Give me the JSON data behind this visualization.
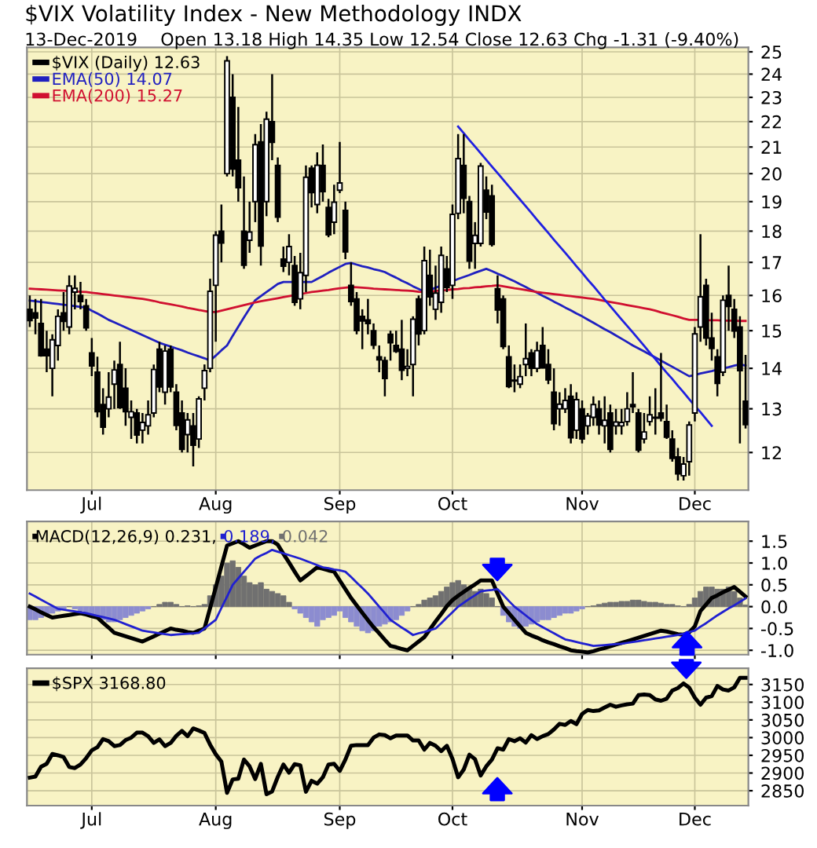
{
  "chart_data": [
    {
      "type": "candlestick",
      "title": "$VIX Volatility Index - New Methodology INDX",
      "subtitle": "13-Dec-2019",
      "annotations": [
        "Open 13.18 High 14.35 Low 12.54 Close 12.63 Chg -1.31 (-9.40%)"
      ],
      "categories": [
        null,
        null,
        null,
        null,
        null,
        null,
        null,
        null,
        null,
        null,
        null,
        "Jul",
        null,
        null,
        null,
        null,
        null,
        null,
        null,
        null,
        null,
        null,
        null,
        null,
        null,
        null,
        null,
        null,
        null,
        null,
        null,
        null,
        null,
        "Aug",
        null,
        null,
        null,
        null,
        null,
        null,
        null,
        null,
        null,
        null,
        null,
        null,
        null,
        null,
        null,
        null,
        null,
        null,
        null,
        null,
        null,
        "Sep",
        null,
        null,
        null,
        null,
        null,
        null,
        null,
        null,
        null,
        null,
        null,
        null,
        null,
        null,
        null,
        null,
        null,
        null,
        null,
        "Oct",
        null,
        null,
        null,
        null,
        null,
        null,
        null,
        null,
        null,
        null,
        null,
        null,
        null,
        null,
        null,
        null,
        null,
        null,
        null,
        null,
        null,
        null,
        "Nov",
        null,
        null,
        null,
        null,
        null,
        null,
        null,
        null,
        null,
        null,
        null,
        null,
        null,
        null,
        null,
        null,
        null,
        null,
        null,
        "Dec",
        null,
        null,
        null,
        null,
        null,
        null,
        null,
        null,
        null
      ],
      "series": [
        {
          "type": "candlestick",
          "name": "$VIX (Daily) 12.63",
          "color": "#000000",
          "ohlc": [
            [
              15.6,
              16.0,
              15.1,
              15.28
            ],
            [
              15.5,
              15.9,
              14.9,
              15.35
            ],
            [
              15.2,
              15.9,
              14.3,
              14.33
            ],
            [
              14.5,
              15.0,
              13.9,
              14.33
            ],
            [
              14.0,
              14.9,
              13.3,
              14.75
            ],
            [
              14.6,
              15.6,
              14.2,
              15.4
            ],
            [
              15.5,
              16.1,
              15.0,
              15.26
            ],
            [
              15.1,
              16.6,
              14.9,
              16.28
            ],
            [
              16.1,
              16.6,
              15.6,
              16.21
            ],
            [
              16.0,
              16.4,
              15.6,
              15.82
            ],
            [
              15.7,
              15.9,
              15.0,
              15.08
            ],
            [
              14.4,
              14.8,
              13.8,
              14.06
            ],
            [
              13.9,
              14.3,
              12.8,
              12.93
            ],
            [
              13.1,
              13.5,
              12.4,
              12.57
            ],
            [
              13.0,
              13.9,
              12.8,
              13.28
            ],
            [
              13.6,
              14.2,
              13.0,
              13.96
            ],
            [
              14.1,
              14.7,
              13.0,
              13.03
            ],
            [
              13.5,
              14.0,
              12.6,
              12.93
            ],
            [
              12.8,
              13.2,
              12.3,
              12.93
            ],
            [
              12.9,
              13.0,
              12.2,
              12.39
            ],
            [
              12.5,
              12.9,
              12.2,
              12.68
            ],
            [
              12.6,
              13.2,
              12.4,
              12.86
            ],
            [
              12.9,
              14.1,
              12.8,
              13.97
            ],
            [
              14.5,
              14.7,
              13.4,
              13.53
            ],
            [
              13.4,
              14.6,
              13.1,
              14.45
            ],
            [
              14.5,
              14.6,
              13.4,
              13.53
            ],
            [
              13.4,
              13.6,
              12.5,
              12.61
            ],
            [
              12.9,
              13.2,
              12.0,
              12.07
            ],
            [
              12.4,
              12.9,
              12.0,
              12.74
            ],
            [
              12.6,
              12.9,
              11.7,
              12.16
            ],
            [
              12.3,
              13.3,
              12.1,
              13.24
            ],
            [
              13.5,
              14.1,
              13.2,
              13.94
            ],
            [
              14.0,
              16.5,
              13.9,
              16.12
            ],
            [
              16.3,
              18.0,
              14.7,
              17.87
            ],
            [
              18.0,
              18.9,
              17.0,
              17.61
            ],
            [
              20.0,
              24.8,
              19.9,
              24.59
            ],
            [
              23.0,
              24.0,
              19.9,
              20.17
            ],
            [
              20.5,
              22.6,
              19.0,
              19.49
            ],
            [
              18.0,
              19.9,
              16.8,
              16.91
            ],
            [
              17.7,
              19.0,
              17.3,
              17.97
            ],
            [
              19.0,
              21.5,
              18.3,
              21.09
            ],
            [
              21.2,
              21.9,
              16.9,
              17.52
            ],
            [
              19.0,
              22.4,
              18.5,
              22.1
            ],
            [
              22.0,
              24.0,
              20.5,
              21.18
            ],
            [
              20.3,
              20.6,
              18.3,
              18.47
            ],
            [
              17.1,
              17.5,
              16.7,
              16.88
            ],
            [
              17.0,
              17.9,
              16.6,
              17.5
            ],
            [
              16.9,
              17.2,
              15.7,
              15.8
            ],
            [
              15.9,
              17.3,
              15.6,
              16.68
            ],
            [
              16.6,
              20.3,
              16.1,
              19.87
            ],
            [
              20.2,
              20.3,
              18.8,
              19.32
            ],
            [
              18.9,
              20.8,
              18.6,
              20.31
            ],
            [
              20.3,
              21.1,
              19.0,
              19.35
            ],
            [
              18.8,
              19.1,
              17.8,
              17.88
            ],
            [
              18.3,
              19.6,
              17.9,
              18.98
            ],
            [
              19.4,
              21.2,
              19.3,
              19.66
            ],
            [
              18.7,
              19.0,
              17.1,
              17.33
            ],
            [
              16.3,
              17.0,
              15.7,
              15.82
            ],
            [
              15.9,
              16.1,
              14.9,
              15.0
            ],
            [
              15.4,
              15.6,
              14.5,
              15.27
            ],
            [
              15.3,
              15.9,
              14.9,
              15.2
            ],
            [
              15.0,
              15.2,
              14.5,
              14.61
            ],
            [
              14.3,
              14.6,
              13.9,
              14.22
            ],
            [
              14.2,
              14.3,
              13.3,
              13.74
            ],
            [
              14.9,
              15.0,
              14.2,
              14.67
            ],
            [
              14.6,
              15.0,
              14.4,
              14.44
            ],
            [
              14.5,
              15.3,
              13.7,
              13.95
            ],
            [
              14.0,
              14.5,
              13.8,
              14.05
            ],
            [
              14.1,
              15.4,
              13.3,
              15.32
            ],
            [
              15.9,
              16.0,
              14.6,
              14.91
            ],
            [
              15.0,
              17.5,
              14.9,
              17.05
            ],
            [
              16.6,
              17.4,
              15.7,
              15.96
            ],
            [
              15.6,
              16.9,
              15.3,
              16.07
            ],
            [
              15.8,
              17.5,
              15.5,
              17.22
            ],
            [
              16.8,
              17.2,
              16.1,
              16.24
            ],
            [
              16.3,
              18.9,
              15.9,
              18.56
            ],
            [
              18.6,
              21.5,
              18.4,
              20.56
            ],
            [
              20.3,
              21.5,
              18.6,
              19.12
            ],
            [
              19.0,
              19.2,
              16.8,
              17.04
            ],
            [
              17.6,
              18.3,
              16.8,
              17.86
            ],
            [
              17.6,
              20.4,
              17.5,
              20.28
            ],
            [
              19.4,
              19.9,
              18.4,
              18.64
            ],
            [
              19.2,
              19.6,
              17.5,
              17.57
            ],
            [
              16.2,
              16.6,
              15.2,
              15.58
            ],
            [
              15.9,
              16.0,
              14.5,
              14.57
            ],
            [
              14.3,
              14.6,
              13.5,
              13.54
            ],
            [
              13.7,
              14.1,
              13.4,
              13.68
            ],
            [
              13.6,
              14.1,
              13.5,
              13.79
            ],
            [
              14.1,
              15.2,
              13.8,
              14.25
            ],
            [
              14.4,
              14.5,
              13.8,
              14.0
            ],
            [
              14.0,
              14.7,
              13.9,
              14.46
            ],
            [
              14.6,
              15.1,
              14.0,
              14.01
            ],
            [
              14.1,
              14.5,
              13.6,
              13.71
            ],
            [
              13.4,
              14.0,
              12.5,
              12.65
            ],
            [
              13.0,
              13.4,
              12.6,
              13.11
            ],
            [
              13.0,
              13.5,
              12.9,
              13.2
            ],
            [
              13.3,
              13.6,
              12.2,
              12.33
            ],
            [
              12.5,
              13.4,
              12.3,
              13.22
            ],
            [
              13.0,
              13.2,
              12.2,
              12.3
            ],
            [
              12.6,
              12.9,
              12.4,
              12.83
            ],
            [
              12.8,
              13.3,
              12.6,
              13.1
            ],
            [
              13.0,
              13.2,
              12.4,
              12.62
            ],
            [
              12.6,
              13.3,
              12.2,
              12.73
            ],
            [
              12.9,
              13.1,
              12.0,
              12.07
            ],
            [
              12.6,
              13.0,
              12.4,
              12.69
            ],
            [
              12.6,
              13.0,
              12.4,
              12.68
            ],
            [
              12.7,
              13.4,
              12.6,
              13.0
            ],
            [
              13.1,
              13.9,
              12.9,
              13.05
            ],
            [
              12.9,
              13.0,
              12.0,
              12.05
            ],
            [
              12.3,
              12.9,
              12.2,
              12.46
            ],
            [
              12.7,
              13.3,
              12.6,
              12.86
            ],
            [
              12.8,
              13.5,
              12.4,
              12.78
            ],
            [
              12.9,
              14.4,
              12.7,
              12.78
            ],
            [
              12.7,
              13.1,
              12.3,
              12.34
            ],
            [
              12.3,
              12.5,
              11.8,
              11.87
            ],
            [
              11.9,
              12.1,
              11.4,
              11.54
            ],
            [
              11.5,
              11.9,
              11.4,
              11.75
            ],
            [
              11.8,
              12.7,
              11.5,
              12.62
            ],
            [
              12.9,
              15.1,
              12.7,
              14.91
            ],
            [
              15.1,
              17.9,
              14.7,
              15.96
            ],
            [
              16.3,
              16.5,
              14.6,
              14.8
            ],
            [
              14.8,
              15.5,
              14.2,
              14.52
            ],
            [
              14.3,
              14.5,
              13.3,
              13.62
            ],
            [
              13.9,
              16.0,
              13.8,
              15.86
            ],
            [
              16.0,
              16.9,
              15.0,
              15.68
            ],
            [
              15.6,
              15.9,
              14.8,
              14.99
            ],
            [
              15.1,
              15.4,
              12.2,
              13.94
            ],
            [
              13.18,
              14.35,
              12.54,
              12.63
            ]
          ]
        },
        {
          "type": "line",
          "name": "EMA(50) 14.07",
          "color": "#2020c0",
          "values": [
            15.85,
            15.83,
            15.81,
            15.79,
            15.77,
            15.75,
            15.73,
            15.71,
            15.69,
            15.67,
            15.65,
            15.56,
            15.48,
            15.39,
            15.3,
            15.23,
            15.16,
            15.09,
            15.02,
            14.95,
            14.88,
            14.81,
            14.74,
            14.67,
            14.62,
            14.57,
            14.52,
            14.47,
            14.41,
            14.36,
            14.31,
            14.26,
            14.2,
            14.33,
            14.47,
            14.6,
            14.86,
            15.11,
            15.37,
            15.62,
            15.86,
            15.98,
            16.1,
            16.22,
            16.34,
            16.4,
            16.4,
            16.4,
            16.4,
            16.4,
            16.4,
            16.49,
            16.58,
            16.68,
            16.77,
            16.86,
            16.95,
            16.98,
            16.93,
            16.88,
            16.84,
            16.79,
            16.75,
            16.7,
            16.61,
            16.53,
            16.44,
            16.36,
            16.27,
            16.19,
            16.1,
            16.16,
            16.23,
            16.29,
            16.36,
            16.42,
            16.49,
            16.55,
            16.61,
            16.68,
            16.74,
            16.8,
            16.73,
            16.65,
            16.58,
            16.5,
            16.42,
            16.33,
            16.25,
            16.16,
            16.08,
            15.99,
            15.91,
            15.82,
            15.74,
            15.65,
            15.57,
            15.48,
            15.4,
            15.31,
            15.22,
            15.13,
            15.04,
            14.96,
            14.87,
            14.78,
            14.69,
            14.6,
            14.52,
            14.44,
            14.36,
            14.28,
            14.2,
            14.12,
            14.04,
            13.96,
            13.88,
            13.8,
            13.83,
            13.87,
            13.9,
            13.93,
            13.97,
            14.0,
            14.03,
            14.07,
            14.1,
            14.07
          ]
        },
        {
          "type": "line",
          "name": "EMA(200) 15.27",
          "color": "#d01030",
          "values": [
            16.2,
            16.19,
            16.18,
            16.17,
            16.16,
            16.15,
            16.14,
            16.13,
            16.12,
            16.11,
            16.1,
            16.08,
            16.06,
            16.04,
            16.02,
            16.0,
            15.98,
            15.96,
            15.94,
            15.92,
            15.9,
            15.87,
            15.84,
            15.8,
            15.77,
            15.74,
            15.71,
            15.68,
            15.64,
            15.61,
            15.58,
            15.55,
            15.52,
            15.52,
            15.56,
            15.6,
            15.64,
            15.68,
            15.72,
            15.76,
            15.8,
            15.83,
            15.86,
            15.89,
            15.92,
            15.95,
            15.98,
            16.01,
            16.04,
            16.07,
            16.1,
            16.12,
            16.14,
            16.16,
            16.19,
            16.21,
            16.23,
            16.25,
            16.24,
            16.23,
            16.22,
            16.2,
            16.19,
            16.18,
            16.17,
            16.16,
            16.15,
            16.14,
            16.13,
            16.11,
            16.1,
            16.12,
            16.13,
            16.15,
            16.16,
            16.18,
            16.19,
            16.21,
            16.22,
            16.24,
            16.25,
            16.27,
            16.28,
            16.3,
            16.27,
            16.24,
            16.21,
            16.19,
            16.16,
            16.13,
            16.1,
            16.08,
            16.06,
            16.04,
            16.02,
            16.0,
            15.98,
            15.96,
            15.94,
            15.92,
            15.9,
            15.87,
            15.84,
            15.81,
            15.78,
            15.75,
            15.72,
            15.69,
            15.66,
            15.63,
            15.6,
            15.56,
            15.51,
            15.47,
            15.43,
            15.39,
            15.34,
            15.3,
            15.3,
            15.3,
            15.29,
            15.29,
            15.29,
            15.28,
            15.28,
            15.28,
            15.27,
            15.27
          ]
        },
        {
          "type": "line",
          "color": "#2020e0",
          "values": [
            null,
            null,
            null,
            null,
            null,
            null,
            null,
            null,
            null,
            null,
            null,
            null,
            null,
            null,
            null,
            null,
            null,
            null,
            null,
            null,
            null,
            null,
            null,
            null,
            null,
            null,
            null,
            null,
            null,
            null,
            null,
            null,
            null,
            null,
            null,
            null,
            null,
            null,
            null,
            null,
            null,
            null,
            null,
            null,
            null,
            null,
            null,
            null,
            null,
            null,
            null,
            null,
            null,
            null,
            null,
            null,
            null,
            null,
            null,
            null,
            null,
            null,
            null,
            null,
            null,
            null,
            null,
            null,
            null,
            null,
            null,
            null,
            null,
            null,
            null,
            null,
            21.8,
            21.54,
            21.27,
            21.02,
            20.76,
            20.51,
            20.26,
            20.02,
            19.78,
            19.54,
            19.3,
            19.07,
            18.84,
            18.61,
            18.38,
            18.16,
            17.94,
            17.72,
            17.51,
            17.3,
            17.09,
            16.88,
            16.68,
            16.47,
            16.28,
            16.08,
            15.88,
            15.69,
            15.5,
            15.31,
            15.13,
            14.95,
            14.77,
            14.59,
            14.41,
            14.24,
            14.06,
            13.89,
            13.73,
            13.56,
            13.4,
            13.23,
            13.07,
            12.92,
            12.76,
            12.6,
            null,
            null,
            null,
            null,
            null,
            null
          ]
        }
      ],
      "log": "y",
      "ylim": [
        11.2,
        25.2
      ],
      "yticks": [
        12,
        13,
        14,
        15,
        16,
        17,
        18,
        19,
        20,
        21,
        22,
        23,
        24,
        25
      ],
      "grid": true,
      "legend": "top left"
    },
    {
      "type": "line",
      "series": [
        {
          "type": "line",
          "name": "MACD(12,26,9) 0.231,",
          "color": "#000000",
          "values": [
            0.0,
            -0.06,
            -0.13,
            -0.19,
            -0.25,
            -0.23,
            -0.21,
            -0.19,
            -0.17,
            -0.15,
            -0.18,
            -0.22,
            -0.25,
            -0.37,
            -0.48,
            -0.6,
            -0.64,
            -0.68,
            -0.72,
            -0.76,
            -0.8,
            -0.74,
            -0.68,
            -0.62,
            -0.56,
            -0.5,
            -0.53,
            -0.55,
            -0.58,
            -0.6,
            -0.55,
            -0.5,
            -0.03,
            0.44,
            0.92,
            1.4,
            1.45,
            1.5,
            1.43,
            1.35,
            1.4,
            1.45,
            1.5,
            1.5,
            1.42,
            1.21,
            1.01,
            0.8,
            0.6,
            0.7,
            0.8,
            0.9,
            0.87,
            0.83,
            0.8,
            0.6,
            0.4,
            0.2,
            0.03,
            -0.14,
            -0.31,
            -0.47,
            -0.61,
            -0.76,
            -0.9,
            -0.93,
            -0.97,
            -1.0,
            -0.9,
            -0.8,
            -0.7,
            -0.52,
            -0.34,
            -0.17,
            0.01,
            0.15,
            0.25,
            0.34,
            0.43,
            0.51,
            0.6,
            0.6,
            0.6,
            0.3,
            0.0,
            -0.15,
            -0.3,
            -0.45,
            -0.6,
            -0.66,
            -0.71,
            -0.77,
            -0.82,
            -0.86,
            -0.91,
            -0.95,
            -1.0,
            -1.02,
            -1.03,
            -1.05,
            -1.02,
            -0.98,
            -0.95,
            -0.91,
            -0.87,
            -0.83,
            -0.79,
            -0.75,
            -0.71,
            -0.67,
            -0.63,
            -0.59,
            -0.55,
            -0.57,
            -0.6,
            -0.63,
            -0.64,
            -0.59,
            -0.45,
            -0.1,
            0.05,
            0.2,
            0.26,
            0.33,
            0.39,
            0.45,
            0.34,
            0.23
          ]
        },
        {
          "type": "line",
          "name": "0.189,",
          "color": "#2020d0",
          "values": [
            0.3,
            0.23,
            0.16,
            0.09,
            0.02,
            -0.05,
            -0.07,
            -0.09,
            -0.11,
            -0.13,
            -0.15,
            -0.18,
            -0.21,
            -0.24,
            -0.27,
            -0.3,
            -0.35,
            -0.4,
            -0.45,
            -0.5,
            -0.55,
            -0.57,
            -0.59,
            -0.61,
            -0.63,
            -0.65,
            -0.64,
            -0.63,
            -0.62,
            -0.61,
            -0.6,
            -0.5,
            -0.4,
            -0.3,
            -0.03,
            0.23,
            0.5,
            0.65,
            0.8,
            0.95,
            1.1,
            1.17,
            1.23,
            1.3,
            1.26,
            1.22,
            1.18,
            1.14,
            1.1,
            1.05,
            1.0,
            0.95,
            0.9,
            0.88,
            0.85,
            0.83,
            0.8,
            0.68,
            0.55,
            0.43,
            0.3,
            0.15,
            0.0,
            -0.15,
            -0.3,
            -0.39,
            -0.48,
            -0.56,
            -0.65,
            -0.61,
            -0.58,
            -0.54,
            -0.5,
            -0.38,
            -0.25,
            -0.13,
            0.0,
            0.09,
            0.18,
            0.26,
            0.35,
            0.37,
            0.38,
            0.4,
            0.27,
            0.13,
            0.0,
            -0.1,
            -0.2,
            -0.3,
            -0.4,
            -0.47,
            -0.54,
            -0.61,
            -0.68,
            -0.75,
            -0.78,
            -0.81,
            -0.84,
            -0.87,
            -0.9,
            -0.89,
            -0.88,
            -0.87,
            -0.86,
            -0.85,
            -0.83,
            -0.81,
            -0.79,
            -0.77,
            -0.75,
            -0.73,
            -0.71,
            -0.69,
            -0.67,
            -0.65,
            -0.62,
            -0.58,
            -0.55,
            -0.46,
            -0.38,
            -0.29,
            -0.2,
            -0.12,
            -0.04,
            0.03,
            0.11,
            0.19
          ]
        },
        {
          "type": "bar",
          "name": "0.042",
          "color": "#707070",
          "values": [
            -0.3,
            -0.3,
            -0.25,
            -0.2,
            -0.15,
            -0.1,
            -0.05,
            0.0,
            -0.05,
            -0.1,
            -0.15,
            -0.2,
            -0.25,
            -0.3,
            -0.35,
            -0.35,
            -0.3,
            -0.25,
            -0.2,
            -0.15,
            -0.1,
            -0.05,
            0.0,
            0.05,
            0.1,
            0.1,
            0.05,
            0.0,
            0.02,
            0.0,
            0.02,
            0.05,
            0.25,
            0.5,
            0.7,
            1.0,
            1.05,
            0.9,
            0.7,
            0.55,
            0.5,
            0.55,
            0.4,
            0.35,
            0.3,
            0.25,
            0.1,
            -0.05,
            -0.15,
            -0.25,
            -0.35,
            -0.45,
            -0.3,
            -0.25,
            -0.2,
            -0.1,
            -0.25,
            -0.35,
            -0.45,
            -0.55,
            -0.6,
            -0.55,
            -0.45,
            -0.4,
            -0.35,
            -0.3,
            -0.2,
            -0.1,
            0.0,
            0.05,
            0.15,
            0.2,
            0.25,
            0.35,
            0.45,
            0.55,
            0.6,
            0.5,
            0.45,
            0.35,
            0.4,
            0.3,
            0.2,
            0.0,
            -0.2,
            -0.35,
            -0.45,
            -0.5,
            -0.45,
            -0.4,
            -0.35,
            -0.3,
            -0.3,
            -0.25,
            -0.2,
            -0.15,
            -0.15,
            -0.1,
            -0.05,
            0.0,
            0.02,
            0.05,
            0.08,
            0.1,
            0.1,
            0.12,
            0.12,
            0.15,
            0.15,
            0.12,
            0.1,
            0.1,
            0.08,
            0.05,
            0.05,
            0.02,
            0.0,
            0.05,
            0.2,
            0.35,
            0.45,
            0.45,
            0.4,
            0.4,
            0.45,
            0.35,
            0.2,
            0.04
          ],
          "colors": [
            "#8c8cd0",
            "#8c8cd0",
            "#8c8cd0",
            "#8c8cd0",
            "#8c8cd0",
            "#8c8cd0",
            "#8c8cd0",
            "#707070",
            "#8c8cd0",
            "#8c8cd0",
            "#8c8cd0",
            "#8c8cd0",
            "#8c8cd0",
            "#8c8cd0",
            "#8c8cd0",
            "#8c8cd0",
            "#8c8cd0",
            "#8c8cd0",
            "#8c8cd0",
            "#8c8cd0",
            "#8c8cd0",
            "#8c8cd0",
            "#707070",
            "#707070",
            "#707070",
            "#707070",
            "#707070",
            "#707070",
            "#707070",
            "#707070",
            "#707070",
            "#707070",
            "#707070",
            "#707070",
            "#707070",
            "#707070",
            "#707070",
            "#707070",
            "#707070",
            "#707070",
            "#707070",
            "#707070",
            "#707070",
            "#707070",
            "#707070",
            "#707070",
            "#707070",
            "#8c8cd0",
            "#8c8cd0",
            "#8c8cd0",
            "#8c8cd0",
            "#8c8cd0",
            "#8c8cd0",
            "#8c8cd0",
            "#8c8cd0",
            "#8c8cd0",
            "#8c8cd0",
            "#8c8cd0",
            "#8c8cd0",
            "#8c8cd0",
            "#8c8cd0",
            "#8c8cd0",
            "#8c8cd0",
            "#8c8cd0",
            "#8c8cd0",
            "#8c8cd0",
            "#8c8cd0",
            "#8c8cd0",
            "#707070",
            "#707070",
            "#707070",
            "#707070",
            "#707070",
            "#707070",
            "#707070",
            "#707070",
            "#707070",
            "#707070",
            "#707070",
            "#707070",
            "#707070",
            "#707070",
            "#707070",
            "#707070",
            "#8c8cd0",
            "#8c8cd0",
            "#8c8cd0",
            "#8c8cd0",
            "#8c8cd0",
            "#8c8cd0",
            "#8c8cd0",
            "#8c8cd0",
            "#8c8cd0",
            "#8c8cd0",
            "#8c8cd0",
            "#8c8cd0",
            "#8c8cd0",
            "#8c8cd0",
            "#8c8cd0",
            "#707070",
            "#707070",
            "#707070",
            "#707070",
            "#707070",
            "#707070",
            "#707070",
            "#707070",
            "#707070",
            "#707070",
            "#707070",
            "#707070",
            "#707070",
            "#707070",
            "#707070",
            "#707070",
            "#707070",
            "#707070",
            "#707070",
            "#707070",
            "#707070",
            "#707070",
            "#707070",
            "#707070",
            "#707070",
            "#707070",
            "#707070",
            "#707070",
            "#707070"
          ]
        }
      ],
      "ylim": [
        -1.1,
        1.95
      ],
      "yticks": [
        {
          "value": 1.5,
          "label": "1.5"
        },
        {
          "value": 1,
          "label": "1.0"
        },
        {
          "value": 0.5,
          "label": "0.5"
        },
        {
          "value": 0,
          "label": "0.0"
        },
        {
          "value": -0.5,
          "label": "-0.5"
        },
        {
          "value": -1,
          "label": "-1.0"
        }
      ],
      "tick_labels": "y",
      "grid": true,
      "legend": "top left"
    },
    {
      "type": "line",
      "categories": [
        null,
        null,
        null,
        null,
        null,
        null,
        null,
        null,
        null,
        null,
        null,
        "Jul",
        null,
        null,
        null,
        null,
        null,
        null,
        null,
        null,
        null,
        null,
        null,
        null,
        null,
        null,
        null,
        null,
        null,
        null,
        null,
        null,
        null,
        "Aug",
        null,
        null,
        null,
        null,
        null,
        null,
        null,
        null,
        null,
        null,
        null,
        null,
        null,
        null,
        null,
        null,
        null,
        null,
        null,
        null,
        null,
        "Sep",
        null,
        null,
        null,
        null,
        null,
        null,
        null,
        null,
        null,
        null,
        null,
        null,
        null,
        null,
        null,
        null,
        null,
        null,
        null,
        "Oct",
        null,
        null,
        null,
        null,
        null,
        null,
        null,
        null,
        null,
        null,
        null,
        null,
        null,
        null,
        null,
        null,
        null,
        null,
        null,
        null,
        null,
        null,
        "Nov",
        null,
        null,
        null,
        null,
        null,
        null,
        null,
        null,
        null,
        null,
        null,
        null,
        null,
        null,
        null,
        null,
        null,
        null,
        null,
        "Dec",
        null,
        null,
        null,
        null,
        null,
        null,
        null,
        null,
        null
      ],
      "series": [
        {
          "name": "$SPX 3168.80",
          "color": "#000000",
          "values": [
            2887,
            2890,
            2918,
            2926,
            2954,
            2950,
            2945,
            2917,
            2914,
            2924,
            2942,
            2964,
            2973,
            2996,
            2990,
            2976,
            2979,
            2993,
            3000,
            3014,
            3014,
            3004,
            2985,
            2995,
            2976,
            2985,
            3005,
            3019,
            3004,
            3026,
            3020,
            3013,
            2980,
            2953,
            2932,
            2844,
            2882,
            2884,
            2938,
            2919,
            2883,
            2926,
            2840,
            2848,
            2889,
            2924,
            2901,
            2925,
            2922,
            2847,
            2878,
            2870,
            2888,
            2924,
            2926,
            2906,
            2938,
            2977,
            2979,
            2979,
            2979,
            3000,
            3009,
            3007,
            2998,
            3006,
            3006,
            3006,
            2992,
            2992,
            2966,
            2985,
            2977,
            2962,
            2977,
            2940,
            2888,
            2910,
            2952,
            2939,
            2893,
            2919,
            2938,
            2970,
            2966,
            2996,
            2990,
            2998,
            2986,
            3007,
            2996,
            3004,
            3010,
            3023,
            3039,
            3036,
            3047,
            3038,
            3067,
            3078,
            3075,
            3077,
            3085,
            3093,
            3087,
            3091,
            3094,
            3096,
            3120,
            3122,
            3120,
            3108,
            3104,
            3110,
            3133,
            3140,
            3153,
            3141,
            3113,
            3093,
            3113,
            3117,
            3146,
            3136,
            3133,
            3142,
            3169,
            3169
          ]
        }
      ],
      "ylim": [
        2808,
        3196
      ],
      "yticks": [
        2850,
        2900,
        2950,
        3000,
        3050,
        3100,
        3150
      ],
      "grid": true,
      "legend": "top left"
    }
  ]
}
